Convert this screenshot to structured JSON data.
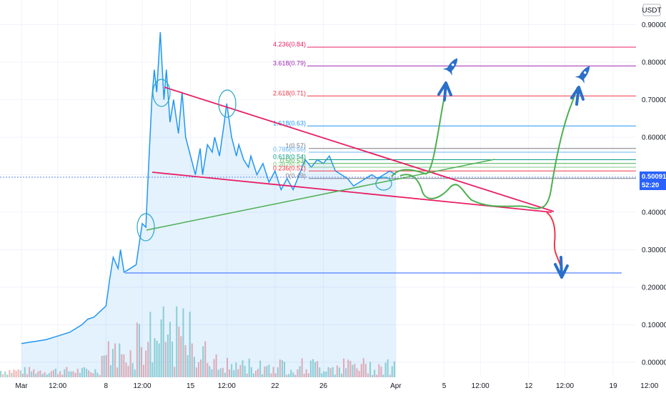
{
  "header": {
    "currency_button": "USDT"
  },
  "current_price": {
    "value": "0.50091",
    "countdown": "52:20",
    "color": "#2962ff"
  },
  "colors": {
    "price_line": "#2196f3",
    "volume_up": "#26a69a",
    "volume_down": "#ef5350",
    "triangle": "#e91e63",
    "support_trend": "#4caf50",
    "base_line": "#2962ff",
    "projection_up": "#4caf50",
    "projection_down": "#f23645",
    "arrow": "#2a6fc9"
  },
  "chart_data": {
    "type": "line",
    "title": "",
    "xlabel": "",
    "ylabel": "",
    "ylim": [
      -0.05,
      0.95
    ],
    "grid": true,
    "y_ticks": [
      "0.90000",
      "0.80000",
      "0.70000",
      "0.60000",
      "0.50000",
      "0.40000",
      "0.30000",
      "0.20000",
      "0.10000",
      "0.00000"
    ],
    "y_tick_values": [
      0.9,
      0.8,
      0.7,
      0.6,
      0.5,
      0.4,
      0.3,
      0.2,
      0.1,
      0.0
    ],
    "x_ticks": [
      "Mar",
      "12:00",
      "8",
      "12:00",
      "15",
      "12:00",
      "22",
      "26",
      "Apr",
      "5",
      "12:00",
      "12",
      "12:00",
      "19",
      "12:00"
    ],
    "x_tick_days": [
      0,
      3,
      7,
      10,
      14,
      17,
      21,
      25,
      31,
      35,
      38,
      42,
      45,
      49,
      52
    ],
    "price_series": {
      "x_days": [
        0,
        1,
        2,
        3,
        4,
        5,
        5.5,
        6,
        6.5,
        7,
        7.3,
        7.6,
        8,
        8.2,
        8.5,
        9,
        9.5,
        10,
        10.3,
        10.5,
        10.8,
        11,
        11.2,
        11.5,
        11.8,
        12,
        12.3,
        12.6,
        13,
        13.3,
        13.6,
        14,
        14.4,
        14.8,
        15,
        15.4,
        15.8,
        16,
        16.4,
        16.8,
        17,
        17.4,
        17.8,
        18,
        18.4,
        18.8,
        19,
        19.5,
        20,
        20.5,
        21,
        21.5,
        22,
        22.5,
        23,
        23.5,
        24,
        24.5,
        25,
        25.5,
        26,
        26.5,
        27,
        27.5,
        28,
        28.5,
        29,
        29.5,
        30,
        30.5,
        31
      ],
      "values": [
        0.05,
        0.055,
        0.06,
        0.07,
        0.08,
        0.1,
        0.115,
        0.12,
        0.135,
        0.15,
        0.22,
        0.28,
        0.25,
        0.3,
        0.24,
        0.25,
        0.26,
        0.37,
        0.36,
        0.5,
        0.7,
        0.78,
        0.72,
        0.88,
        0.7,
        0.78,
        0.64,
        0.7,
        0.61,
        0.72,
        0.6,
        0.55,
        0.5,
        0.57,
        0.5,
        0.58,
        0.56,
        0.6,
        0.55,
        0.64,
        0.69,
        0.6,
        0.55,
        0.58,
        0.54,
        0.52,
        0.55,
        0.5,
        0.53,
        0.48,
        0.51,
        0.46,
        0.49,
        0.46,
        0.5,
        0.54,
        0.52,
        0.54,
        0.53,
        0.55,
        0.51,
        0.5,
        0.49,
        0.47,
        0.48,
        0.49,
        0.5,
        0.49,
        0.5,
        0.51,
        0.5
      ]
    },
    "fib_levels": [
      {
        "label": "4.236(0.84)",
        "value": 0.84,
        "color": "#e91e63"
      },
      {
        "label": "3.618(0.79)",
        "value": 0.79,
        "color": "#9c27b0"
      },
      {
        "label": "2.618(0.71)",
        "value": 0.71,
        "color": "#f23645"
      },
      {
        "label": "1.618(0.63)",
        "value": 0.63,
        "color": "#2196f3"
      },
      {
        "label": "1(0.57)",
        "value": 0.57,
        "color": "#787b86"
      },
      {
        "label": "0.786(0.56)",
        "value": 0.56,
        "color": "#64b5f6"
      },
      {
        "label": "0.618(0.54)",
        "value": 0.54,
        "color": "#089981"
      },
      {
        "label": "0.5(0.53)",
        "value": 0.53,
        "color": "#4caf50"
      },
      {
        "label": "0.382(0.52)",
        "value": 0.52,
        "color": "#81c784"
      },
      {
        "label": "0.236(0.51)",
        "value": 0.51,
        "color": "#f23645"
      },
      {
        "label": "0(0.49)",
        "value": 0.49,
        "color": "#787b86"
      }
    ]
  }
}
